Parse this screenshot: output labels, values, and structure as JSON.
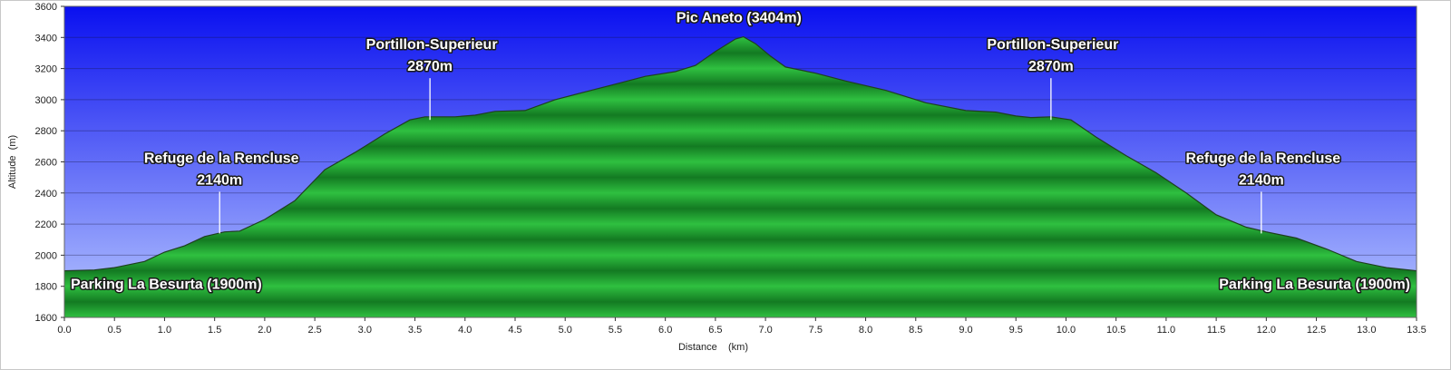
{
  "chart_data": {
    "type": "area",
    "title": "",
    "xlabel": "Distance    (km)",
    "ylabel": "Altitude  (m)",
    "xlim": [
      0,
      13.5
    ],
    "ylim": [
      1600,
      3600
    ],
    "x_ticks": [
      "0.0",
      "0.5",
      "1.0",
      "1.5",
      "2.0",
      "2.5",
      "3.0",
      "3.5",
      "4.0",
      "4.5",
      "5.0",
      "5.5",
      "6.0",
      "6.5",
      "7.0",
      "7.5",
      "8.0",
      "8.5",
      "9.0",
      "9.5",
      "10.0",
      "10.5",
      "11.0",
      "11.5",
      "12.0",
      "12.5",
      "13.0",
      "13.5"
    ],
    "y_ticks": [
      "1600",
      "1800",
      "2000",
      "2200",
      "2400",
      "2600",
      "2800",
      "3000",
      "3200",
      "3400",
      "3600"
    ],
    "grid": "horizontal",
    "colors": {
      "sky_top": "#0a10f0",
      "sky_bottom": "#b8c8ff",
      "fill_light": "#2fc040",
      "fill_dark": "#137a22",
      "outline": "#1f3f1f"
    },
    "series": [
      {
        "x": [
          0,
          0.3,
          0.5,
          0.8,
          1.0,
          1.2,
          1.4,
          1.6,
          1.75,
          2.0,
          2.3,
          2.6,
          2.9,
          3.2,
          3.45,
          3.6,
          3.75,
          3.9,
          4.1,
          4.3,
          4.6,
          4.9,
          5.2,
          5.5,
          5.8,
          6.1,
          6.3,
          6.5,
          6.7,
          6.78,
          6.9,
          7.05,
          7.2,
          7.5,
          7.8,
          8.2,
          8.6,
          9.0,
          9.3,
          9.5,
          9.65,
          9.85,
          10.05,
          10.3,
          10.6,
          10.9,
          11.2,
          11.5,
          11.8,
          12.0,
          12.3,
          12.6,
          12.9,
          13.2,
          13.5
        ],
        "y": [
          1900,
          1905,
          1920,
          1960,
          2020,
          2060,
          2120,
          2150,
          2155,
          2230,
          2350,
          2550,
          2660,
          2780,
          2870,
          2890,
          2890,
          2890,
          2900,
          2925,
          2930,
          3000,
          3050,
          3100,
          3150,
          3180,
          3220,
          3310,
          3390,
          3404,
          3360,
          3280,
          3210,
          3170,
          3120,
          3060,
          2980,
          2930,
          2920,
          2895,
          2885,
          2890,
          2870,
          2760,
          2640,
          2530,
          2400,
          2260,
          2180,
          2150,
          2110,
          2040,
          1960,
          1920,
          1900
        ]
      }
    ],
    "annotations": [
      {
        "lines": [
          "Pic Aneto (3404m)"
        ],
        "x": 6.78,
        "y": 3404
      },
      {
        "lines": [
          "Portillon-Superieur",
          "2870m"
        ],
        "x": 3.65,
        "y": 2870
      },
      {
        "lines": [
          "Portillon-Superieur",
          "2870m"
        ],
        "x": 9.85,
        "y": 2870
      },
      {
        "lines": [
          "Refuge de la Rencluse",
          "2140m"
        ],
        "x": 1.55,
        "y": 2140
      },
      {
        "lines": [
          "Refuge de la Rencluse",
          "2140m"
        ],
        "x": 11.95,
        "y": 2140
      },
      {
        "lines": [
          "Parking La Besurta (1900m)"
        ],
        "x": 0,
        "y": 1900
      },
      {
        "lines": [
          "Parking La Besurta (1900m)"
        ],
        "x": 13.5,
        "y": 1900
      }
    ]
  }
}
